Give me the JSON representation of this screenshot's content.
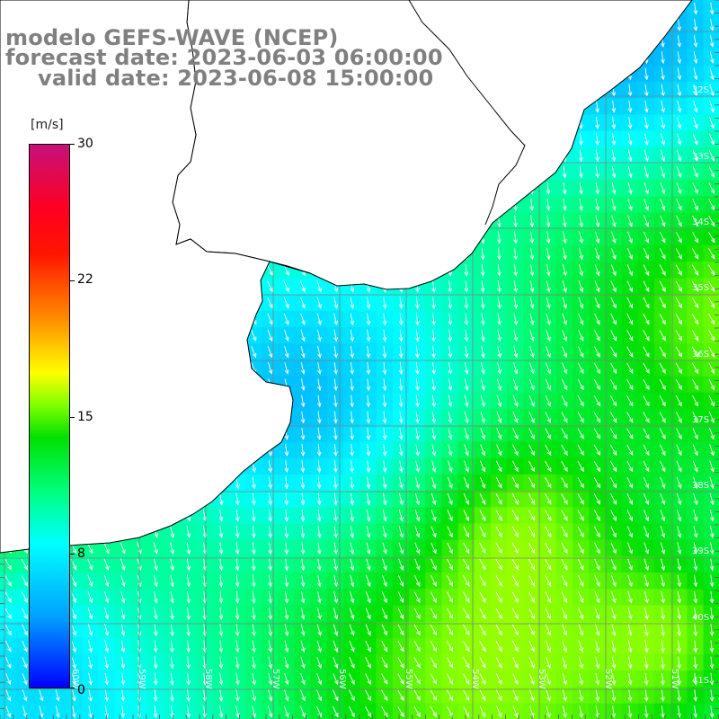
{
  "title": {
    "line1": "modelo GEFS-WAVE (NCEP)",
    "line2": "forecast date: 2023-06-03 06:00:00",
    "line3": "valid date: 2023-06-08 15:00:00"
  },
  "colorbar": {
    "unit": "[m/s]",
    "min": 0,
    "max": 30,
    "ticks": [
      "30",
      "22",
      "15",
      "8",
      "0"
    ],
    "colors": {
      "blue": "#0000ff",
      "cyan": "#00ffff",
      "green": "#00e000",
      "yellow": "#ffff00",
      "orange": "#ff8c00",
      "red": "#ff1500",
      "magenta": "#c8107a"
    }
  },
  "map": {
    "land_color": "#ffffff",
    "coastline_color": "#000000",
    "grid_color": "#808080",
    "arrow_color": "#ffffff",
    "lat_labels": [
      "32S",
      "33S",
      "34S",
      "35S",
      "36S",
      "37S",
      "38S",
      "39S",
      "40S",
      "41S"
    ],
    "lon_labels": [
      "60W",
      "59W",
      "58W",
      "57W",
      "56W",
      "55W",
      "54W",
      "53W",
      "52W",
      "51W"
    ]
  }
}
